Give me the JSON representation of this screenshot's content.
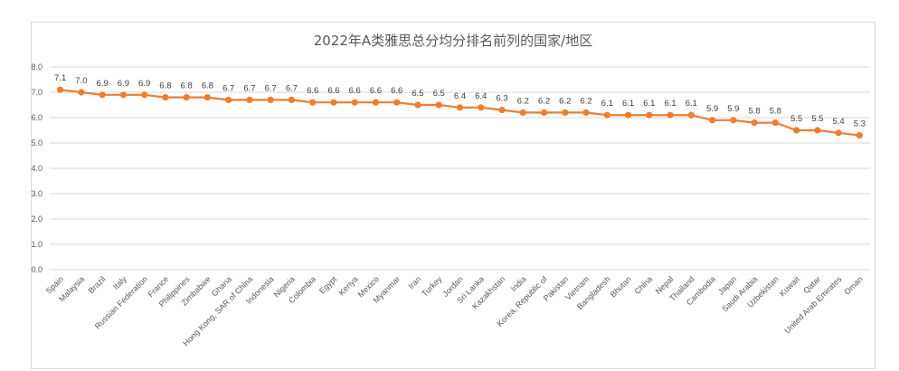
{
  "chart_data": {
    "type": "line",
    "title": "2022年A类雅思总分均分排名前列的国家/地区",
    "xlabel": "",
    "ylabel": "",
    "ylim": [
      0,
      8
    ],
    "y_ticks": [
      "0.0",
      "1.0",
      "2.0",
      "3.0",
      "4.0",
      "5.0",
      "6.0",
      "7.0",
      "8.0"
    ],
    "grid": true,
    "series_color": "#ed7d31",
    "categories": [
      "Spain",
      "Malaysia",
      "Brazil",
      "Italy",
      "Russian Federation",
      "France",
      "Philippines",
      "Zimbabwe",
      "Ghana",
      "Hong Kong, SAR of China",
      "Indonesia",
      "Nigeria",
      "Colombia",
      "Egypt",
      "Kenya",
      "Mexico",
      "Myanmar",
      "Iran",
      "Turkey",
      "Jordan",
      "Sri Lanka",
      "Kazakhstan",
      "India",
      "Korea, Republic of",
      "Pakistan",
      "Vietnam",
      "Bangladesh",
      "Bhutan",
      "China",
      "Nepal",
      "Thailand",
      "Cambodia",
      "Japan",
      "Saudi Arabia",
      "Uzbekistan",
      "Kuwait",
      "Qatar",
      "United Arab Emirates",
      "Oman"
    ],
    "values": [
      7.1,
      7.0,
      6.9,
      6.9,
      6.9,
      6.8,
      6.8,
      6.8,
      6.7,
      6.7,
      6.7,
      6.7,
      6.6,
      6.6,
      6.6,
      6.6,
      6.6,
      6.5,
      6.5,
      6.4,
      6.4,
      6.3,
      6.2,
      6.2,
      6.2,
      6.2,
      6.1,
      6.1,
      6.1,
      6.1,
      6.1,
      5.9,
      5.9,
      5.8,
      5.8,
      5.5,
      5.5,
      5.4,
      5.3
    ],
    "value_labels": [
      "7.1",
      "7.0",
      "6.9",
      "6.9",
      "6.9",
      "6.8",
      "6.8",
      "6.8",
      "6.7",
      "6.7",
      "6.7",
      "6.7",
      "6.6",
      "6.6",
      "6.6",
      "6.6",
      "6.6",
      "6.5",
      "6.5",
      "6.4",
      "6.4",
      "6.3",
      "6.2",
      "6.2",
      "6.2",
      "6.2",
      "6.1",
      "6.1",
      "6.1",
      "6.1",
      "6.1",
      "5.9",
      "5.9",
      "5.8",
      "5.8",
      "5.5",
      "5.5",
      "5.4",
      "5.3"
    ]
  }
}
